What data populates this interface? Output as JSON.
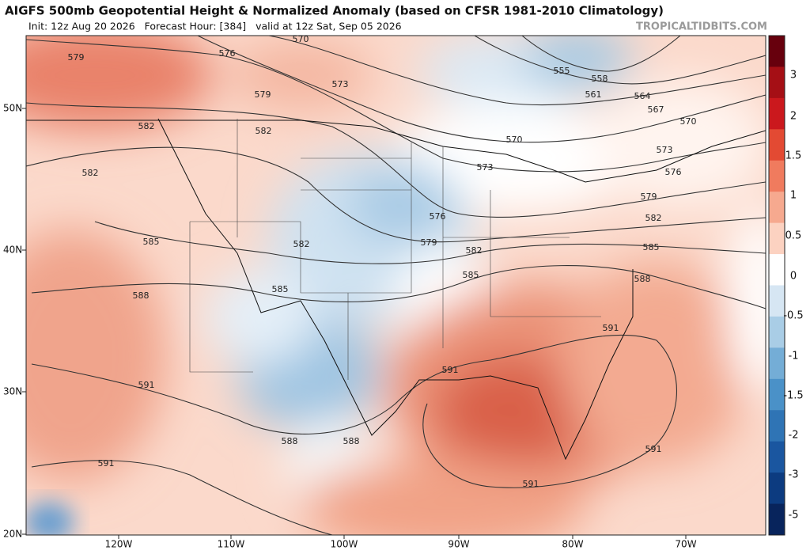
{
  "header": {
    "title": "AIGFS 500mb Geopotential Height & Normalized Anomaly (based on CFSR 1981-2010 Climatology)",
    "subtitle": "Init: 12z Aug 20 2026   Forecast Hour: [384]   valid at 12z Sat, Sep 05 2026",
    "credit": "TROPICALTIDBITS.COM"
  },
  "map": {
    "lat_labels": [
      "50N",
      "40N",
      "30N",
      "20N"
    ],
    "lon_labels": [
      "120W",
      "110W",
      "100W",
      "90W",
      "80W",
      "70W"
    ],
    "contour_labels": [
      570,
      579,
      576,
      573,
      579,
      555,
      558,
      561,
      564,
      567,
      570,
      570,
      573,
      573,
      576,
      582,
      582,
      582,
      576,
      579,
      579,
      582,
      585,
      582,
      582,
      585,
      585,
      588,
      588,
      585,
      591,
      591,
      591,
      588,
      588,
      591,
      591,
      591
    ]
  },
  "colorbar": {
    "labels": [
      3,
      2,
      1.5,
      1,
      0.5,
      0,
      -0.5,
      -1,
      -1.5,
      -2,
      -3,
      -5
    ]
  }
}
